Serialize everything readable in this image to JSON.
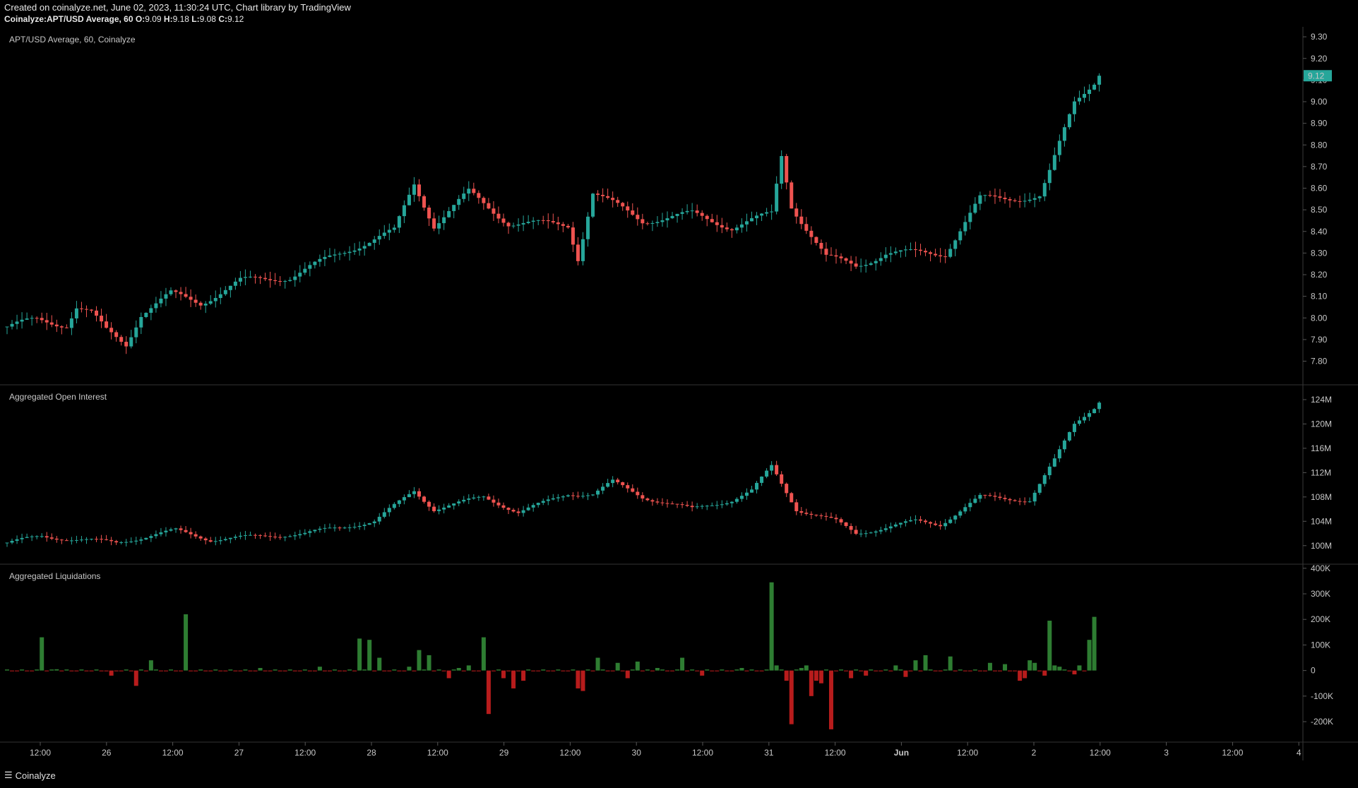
{
  "header": {
    "line1": "Created on coinalyze.net, June 02, 2023, 11:30:24 UTC, Chart library by TradingView",
    "symbol": "Coinalyze:APT/USD Average, 60",
    "o_label": "O:",
    "o": "9.09",
    "h_label": "H:",
    "h": "9.18",
    "l_label": "L:",
    "l": "9.08",
    "c_label": "C:",
    "c": "9.12"
  },
  "footer": {
    "brand": "Coinalyze"
  },
  "colors": {
    "up": "#26a69a",
    "down": "#ef5350",
    "liq_up": "#2e7d32",
    "liq_down": "#b71c1c",
    "price_label_bg": "#26a69a"
  },
  "chart_data": [
    {
      "type": "candlestick",
      "title": "APT/USD Average, 60, Coinalyze",
      "ylim": [
        7.72,
        9.32
      ],
      "yticks": [
        "9.30",
        "9.20",
        "9.10",
        "9.00",
        "8.90",
        "8.80",
        "8.70",
        "8.60",
        "8.50",
        "8.40",
        "8.30",
        "8.20",
        "8.10",
        "8.00",
        "7.90",
        "7.80"
      ],
      "last_price_label": "9.12",
      "last_price": 9.12,
      "anchors": [
        [
          0,
          7.96
        ],
        [
          6,
          7.99
        ],
        [
          12,
          7.97
        ],
        [
          14,
          8.05
        ],
        [
          17,
          8.02
        ],
        [
          20,
          7.94
        ],
        [
          24,
          7.88
        ],
        [
          27,
          8.02
        ],
        [
          33,
          8.11
        ],
        [
          39,
          8.07
        ],
        [
          47,
          8.17
        ],
        [
          57,
          8.19
        ],
        [
          69,
          8.32
        ],
        [
          78,
          8.4
        ],
        [
          82,
          8.62
        ],
        [
          86,
          8.43
        ],
        [
          93,
          8.58
        ],
        [
          101,
          8.44
        ],
        [
          113,
          8.43
        ],
        [
          115,
          8.28
        ],
        [
          118,
          8.58
        ],
        [
          128,
          8.45
        ],
        [
          138,
          8.48
        ],
        [
          146,
          8.42
        ],
        [
          154,
          8.48
        ],
        [
          156,
          8.75
        ],
        [
          158,
          8.52
        ],
        [
          165,
          8.28
        ],
        [
          171,
          8.24
        ],
        [
          177,
          8.3
        ],
        [
          189,
          8.3
        ],
        [
          196,
          8.55
        ],
        [
          208,
          8.56
        ],
        [
          210,
          8.67
        ],
        [
          215,
          9.0
        ],
        [
          220,
          9.12
        ]
      ]
    },
    {
      "type": "candlestick",
      "title": "Aggregated Open Interest",
      "ylim": [
        98,
        125.5
      ],
      "yticks": [
        "124M",
        "120M",
        "116M",
        "112M",
        "108M",
        "104M",
        "100M"
      ],
      "anchors": [
        [
          0,
          100.5
        ],
        [
          7,
          101.5
        ],
        [
          22,
          100.5
        ],
        [
          34,
          102.5
        ],
        [
          41,
          101.0
        ],
        [
          60,
          102.0
        ],
        [
          74,
          104.0
        ],
        [
          82,
          109.0
        ],
        [
          86,
          106.0
        ],
        [
          96,
          108.0
        ],
        [
          103,
          105.5
        ],
        [
          113,
          108.5
        ],
        [
          118,
          108.5
        ],
        [
          122,
          110.5
        ],
        [
          128,
          108.0
        ],
        [
          138,
          106.0
        ],
        [
          146,
          107.5
        ],
        [
          150,
          109.0
        ],
        [
          154,
          113.0
        ],
        [
          159,
          106.0
        ],
        [
          167,
          104.0
        ],
        [
          171,
          102.0
        ],
        [
          183,
          104.0
        ],
        [
          188,
          103.5
        ],
        [
          196,
          108.0
        ],
        [
          206,
          107.5
        ],
        [
          211,
          114.0
        ],
        [
          215,
          120.0
        ],
        [
          220,
          123.5
        ]
      ]
    },
    {
      "type": "bar",
      "title": "Aggregated Liquidations",
      "ylim": [
        -280000,
        405000
      ],
      "yticks": [
        "400K",
        "300K",
        "200K",
        "100K",
        "0",
        "-100K",
        "-200K"
      ],
      "bars": [
        [
          7,
          130000
        ],
        [
          10,
          5000
        ],
        [
          21,
          -20000
        ],
        [
          26,
          -60000
        ],
        [
          29,
          40000
        ],
        [
          36,
          220000
        ],
        [
          51,
          10000
        ],
        [
          63,
          15000
        ],
        [
          71,
          125000
        ],
        [
          73,
          120000
        ],
        [
          75,
          50000
        ],
        [
          81,
          15000
        ],
        [
          83,
          80000
        ],
        [
          85,
          60000
        ],
        [
          89,
          -30000
        ],
        [
          91,
          10000
        ],
        [
          93,
          20000
        ],
        [
          96,
          130000
        ],
        [
          97,
          -170000
        ],
        [
          100,
          -30000
        ],
        [
          102,
          -70000
        ],
        [
          104,
          -40000
        ],
        [
          115,
          -70000
        ],
        [
          116,
          -80000
        ],
        [
          119,
          50000
        ],
        [
          123,
          30000
        ],
        [
          125,
          -30000
        ],
        [
          127,
          35000
        ],
        [
          131,
          10000
        ],
        [
          136,
          50000
        ],
        [
          140,
          -20000
        ],
        [
          148,
          10000
        ],
        [
          154,
          345000
        ],
        [
          155,
          20000
        ],
        [
          157,
          -40000
        ],
        [
          158,
          -210000
        ],
        [
          160,
          10000
        ],
        [
          161,
          20000
        ],
        [
          162,
          -100000
        ],
        [
          163,
          -40000
        ],
        [
          164,
          -50000
        ],
        [
          166,
          -230000
        ],
        [
          170,
          -30000
        ],
        [
          173,
          -20000
        ],
        [
          179,
          20000
        ],
        [
          181,
          -25000
        ],
        [
          183,
          40000
        ],
        [
          185,
          60000
        ],
        [
          190,
          55000
        ],
        [
          198,
          30000
        ],
        [
          201,
          25000
        ],
        [
          204,
          -40000
        ],
        [
          205,
          -30000
        ],
        [
          206,
          40000
        ],
        [
          207,
          30000
        ],
        [
          209,
          -20000
        ],
        [
          210,
          195000
        ],
        [
          211,
          20000
        ],
        [
          212,
          15000
        ],
        [
          215,
          -15000
        ],
        [
          216,
          20000
        ],
        [
          218,
          120000
        ],
        [
          219,
          210000
        ]
      ]
    },
    {
      "type": "time_axis",
      "labels": [
        "12:00",
        "26",
        "12:00",
        "27",
        "12:00",
        "28",
        "12:00",
        "29",
        "12:00",
        "30",
        "12:00",
        "31",
        "12:00",
        "Jun",
        "12:00",
        "2",
        "12:00",
        "3",
        "12:00",
        "4"
      ]
    }
  ]
}
